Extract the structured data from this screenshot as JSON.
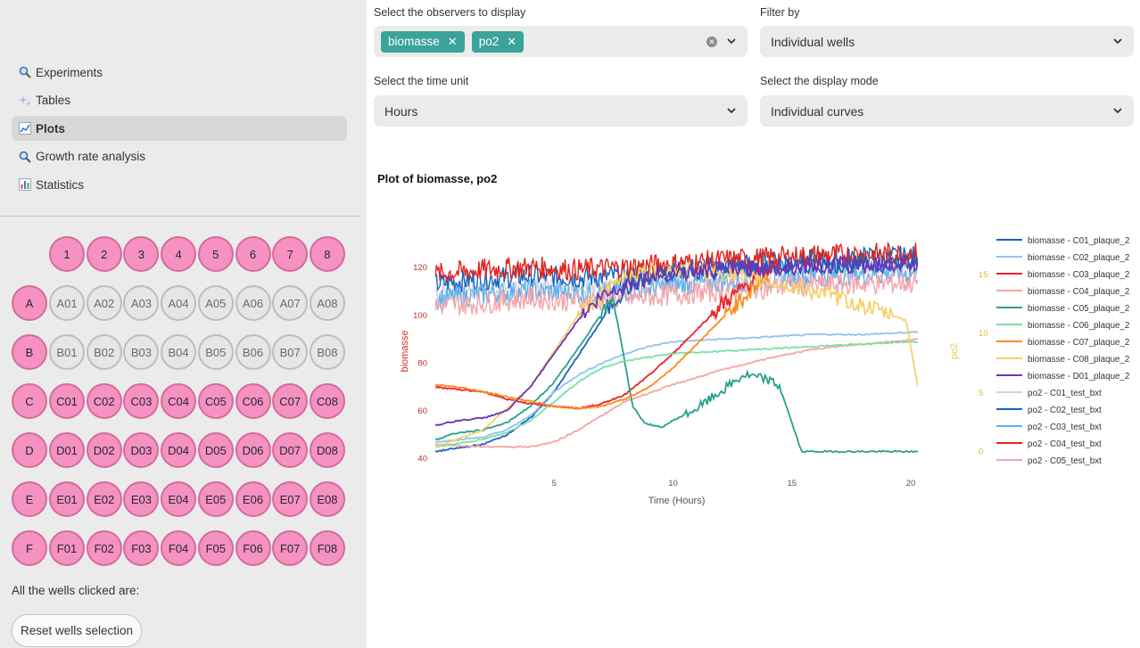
{
  "sidebar": {
    "nav": [
      {
        "label": "Experiments",
        "icon": "magnifier-icon",
        "active": false
      },
      {
        "label": "Tables",
        "icon": "sparkles-icon",
        "active": false
      },
      {
        "label": "Plots",
        "icon": "chart-line-icon",
        "active": true
      },
      {
        "label": "Growth rate analysis",
        "icon": "magnifier-icon",
        "active": false
      },
      {
        "label": "Statistics",
        "icon": "bar-chart-icon",
        "active": false
      }
    ],
    "plate": {
      "columns": [
        "1",
        "2",
        "3",
        "4",
        "5",
        "6",
        "7",
        "8"
      ],
      "rows": [
        "A",
        "B",
        "C",
        "D",
        "E",
        "F"
      ],
      "selected_rows": [
        "C",
        "D",
        "E",
        "F"
      ]
    },
    "clicked_label": "All the wells clicked are:",
    "reset_label": "Reset wells selection"
  },
  "controls": {
    "observers_label": "Select the observers to display",
    "observers": [
      "biomasse",
      "po2"
    ],
    "filter_label": "Filter by",
    "filter_value": "Individual wells",
    "time_label": "Select the time unit",
    "time_value": "Hours",
    "display_label": "Select the display mode",
    "display_value": "Individual curves"
  },
  "plot": {
    "title": "Plot of biomasse, po2"
  },
  "chart_data": {
    "type": "line",
    "xlabel": "Time (Hours)",
    "ylabel": "biomasse",
    "y2label": "po2",
    "xlim": [
      0,
      20.3
    ],
    "ylim": [
      38,
      132
    ],
    "y2lim": [
      -1,
      18
    ],
    "xticks": [
      5,
      10,
      15,
      20
    ],
    "yticks": [
      40,
      60,
      80,
      100,
      120
    ],
    "y2ticks": [
      0,
      5,
      10,
      15
    ],
    "legend_position": "right",
    "colors": {
      "ylabel": "#d62728",
      "y2label": "#e5cc4f"
    },
    "series": [
      {
        "name": "biomasse - C01_plaque_2",
        "color": "#1f5fbf",
        "x": [
          0,
          2,
          3,
          4,
          5,
          6,
          7,
          7.5,
          8,
          9,
          10,
          12,
          14,
          16,
          18,
          20.3
        ],
        "y": [
          43,
          46,
          50,
          57,
          68,
          83,
          98,
          106,
          111,
          116,
          118,
          119,
          120,
          121,
          121,
          122
        ]
      },
      {
        "name": "biomasse - C02_plaque_2",
        "color": "#8fc3f2",
        "x": [
          0,
          2,
          3,
          4,
          5,
          6,
          7,
          8,
          9,
          10,
          12,
          14,
          16,
          18,
          20.3
        ],
        "y": [
          47,
          49,
          52,
          58,
          68,
          75,
          80,
          84,
          87,
          89,
          90,
          91,
          92,
          92,
          93
        ]
      },
      {
        "name": "biomasse - C03_plaque_2",
        "color": "#e8262b",
        "x": [
          0,
          1,
          2,
          3,
          4,
          5,
          6,
          7,
          8,
          9,
          10,
          11,
          12,
          13,
          14,
          14.5
        ],
        "y": [
          70,
          69,
          68,
          65,
          63,
          62,
          61,
          63,
          67,
          75,
          84,
          94,
          104,
          112,
          119,
          122
        ]
      },
      {
        "name": "biomasse - C04_plaque_2",
        "color": "#f4a5a5",
        "x": [
          0,
          2,
          4,
          5,
          6,
          7,
          8,
          10,
          12,
          14,
          16,
          18,
          20.3
        ],
        "y": [
          46,
          45,
          45,
          47,
          52,
          58,
          64,
          71,
          77,
          82,
          86,
          88,
          90
        ]
      },
      {
        "name": "biomasse - C05_plaque_2",
        "color": "#26a08b",
        "x": [
          0,
          1,
          2,
          3,
          4,
          5,
          6,
          7,
          7.5,
          7.8,
          8.3,
          8.8,
          9.5,
          10,
          11,
          12,
          13,
          14,
          14.5,
          15,
          15.4,
          16,
          20.3
        ],
        "y": [
          48,
          51,
          52,
          55,
          62,
          72,
          86,
          101,
          106,
          90,
          62,
          55,
          53,
          56,
          61,
          68,
          75,
          73,
          70,
          55,
          43,
          43,
          43
        ]
      },
      {
        "name": "biomasse - C06_plaque_2",
        "color": "#7be0a4",
        "x": [
          0,
          2,
          3,
          4,
          5,
          6,
          7,
          8,
          10,
          12,
          14,
          16,
          18,
          20.3
        ],
        "y": [
          45,
          48,
          51,
          56,
          64,
          72,
          78,
          81,
          84,
          85,
          86,
          87,
          88,
          89
        ]
      },
      {
        "name": "biomasse - C07_plaque_2",
        "color": "#ff8a1e",
        "x": [
          0,
          1,
          2,
          3,
          4,
          5,
          6,
          7,
          8,
          9,
          10,
          11,
          12,
          13,
          14
        ],
        "y": [
          71,
          70,
          68,
          66,
          64,
          62,
          61,
          62,
          65,
          70,
          78,
          88,
          98,
          108,
          116
        ]
      },
      {
        "name": "biomasse - C08_plaque_2",
        "color": "#f7d06a",
        "x": [
          0,
          2,
          4,
          6,
          8,
          10,
          12,
          14,
          16,
          18,
          19.8,
          20.3
        ],
        "y": [
          45,
          52,
          70,
          100,
          117,
          119,
          118,
          114,
          110,
          104,
          98,
          70
        ]
      },
      {
        "name": "biomasse - D01_plaque_2",
        "color": "#6a35b8",
        "x": [
          0,
          1,
          2,
          3,
          4,
          5,
          5.5,
          6,
          7,
          8,
          9,
          10,
          12,
          14,
          16,
          18,
          20.3
        ],
        "y": [
          54,
          56,
          57,
          60,
          70,
          84,
          91,
          98,
          108,
          113,
          116,
          118,
          119,
          120,
          121,
          121,
          122
        ]
      },
      {
        "name": "po2 - C01_test_bxt",
        "color": "#d3d3d3",
        "x": [
          0,
          2,
          4,
          6,
          8,
          10,
          12,
          14,
          16,
          18,
          20.3
        ],
        "y": [
          13.5,
          13.8,
          14.0,
          14.2,
          14.0,
          14.5,
          14.9,
          15.2,
          15.4,
          15.6,
          15.7
        ]
      },
      {
        "name": "po2 - C02_test_bxt",
        "color": "#1565c0",
        "x": [
          0,
          2,
          4,
          6,
          8,
          10,
          12,
          14,
          16,
          18,
          20.3
        ],
        "y": [
          14.2,
          14.6,
          14.9,
          14.7,
          14.9,
          15.3,
          15.7,
          16.0,
          16.2,
          16.4,
          16.5
        ]
      },
      {
        "name": "po2 - C03_test_bxt",
        "color": "#5fb0ef",
        "x": [
          0,
          2,
          4,
          6,
          8,
          10,
          12,
          14,
          16,
          18,
          20.3
        ],
        "y": [
          12.9,
          13.3,
          13.6,
          13.4,
          13.6,
          14.0,
          14.4,
          14.6,
          14.8,
          15.0,
          15.1
        ]
      },
      {
        "name": "po2 - C04_test_bxt",
        "color": "#e2231a",
        "x": [
          0,
          2,
          4,
          6,
          8,
          10,
          12,
          14,
          16,
          18,
          20.3
        ],
        "y": [
          15.0,
          15.4,
          15.6,
          15.4,
          15.6,
          15.9,
          16.2,
          16.4,
          16.6,
          16.7,
          16.8
        ]
      },
      {
        "name": "po2 - C05_test_bxt",
        "color": "#f6a3a9",
        "x": [
          0,
          2,
          4,
          6,
          8,
          10,
          12,
          14,
          16,
          18,
          20.3
        ],
        "y": [
          12.3,
          12.6,
          13.0,
          12.7,
          12.9,
          13.3,
          13.6,
          13.9,
          14.1,
          14.2,
          14.3
        ]
      }
    ]
  }
}
